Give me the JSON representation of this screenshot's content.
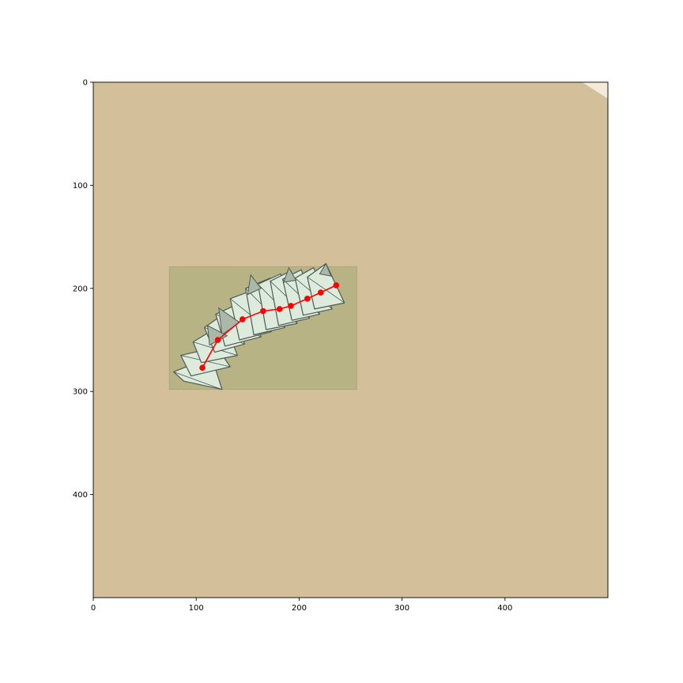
{
  "chart_data": {
    "type": "scatter",
    "title": "",
    "xlabel": "",
    "ylabel": "",
    "xlim": [
      0,
      500
    ],
    "ylim": [
      500,
      0
    ],
    "y_inverted": true,
    "grid": false,
    "legend": "none",
    "x_ticks": [
      0,
      100,
      200,
      300,
      400
    ],
    "y_ticks": [
      0,
      100,
      200,
      300,
      400
    ],
    "background_color": "#d4bf9b",
    "corner_color": "#f3ead9",
    "region": {
      "x0": 74,
      "y0": 179,
      "x1": 256,
      "y1": 298,
      "color": "#b7b385"
    },
    "folded_sheet": {
      "fill": "#dcebdc",
      "shade": "#a9b8a8",
      "stroke": "#4d5a52",
      "panels": [
        [
          [
            78,
            281
          ],
          [
            115,
            266
          ],
          [
            125,
            298
          ],
          [
            88,
            290
          ]
        ],
        [
          [
            85,
            265
          ],
          [
            120,
            257
          ],
          [
            133,
            276
          ],
          [
            95,
            285
          ]
        ],
        [
          [
            97,
            252
          ],
          [
            128,
            233
          ],
          [
            140,
            265
          ],
          [
            105,
            272
          ]
        ],
        [
          [
            108,
            238
          ],
          [
            135,
            219
          ],
          [
            147,
            254
          ],
          [
            118,
            262
          ]
        ],
        [
          [
            119,
            225
          ],
          [
            150,
            211
          ],
          [
            163,
            247
          ],
          [
            128,
            256
          ]
        ],
        [
          [
            133,
            210
          ],
          [
            160,
            200
          ],
          [
            173,
            242
          ],
          [
            142,
            250
          ]
        ],
        [
          [
            148,
            200
          ],
          [
            172,
            190
          ],
          [
            186,
            238
          ],
          [
            156,
            245
          ]
        ],
        [
          [
            160,
            196
          ],
          [
            182,
            186
          ],
          [
            198,
            234
          ],
          [
            168,
            240
          ]
        ],
        [
          [
            172,
            193
          ],
          [
            192,
            183
          ],
          [
            210,
            229
          ],
          [
            180,
            236
          ]
        ],
        [
          [
            184,
            191
          ],
          [
            202,
            182
          ],
          [
            220,
            225
          ],
          [
            193,
            231
          ]
        ],
        [
          [
            196,
            190
          ],
          [
            214,
            180
          ],
          [
            232,
            220
          ],
          [
            204,
            226
          ]
        ],
        [
          [
            208,
            189
          ],
          [
            226,
            176
          ],
          [
            244,
            214
          ],
          [
            215,
            220
          ]
        ]
      ],
      "spikes": [
        [
          [
            122,
            219
          ],
          [
            142,
            233
          ],
          [
            125,
            245
          ]
        ],
        [
          [
            111,
            236
          ],
          [
            130,
            246
          ],
          [
            113,
            255
          ]
        ],
        [
          [
            153,
            187
          ],
          [
            163,
            200
          ],
          [
            150,
            206
          ]
        ],
        [
          [
            190,
            180
          ],
          [
            197,
            192
          ],
          [
            185,
            194
          ]
        ],
        [
          [
            226,
            176
          ],
          [
            231,
            188
          ],
          [
            220,
            186
          ]
        ]
      ]
    },
    "path_color": "#ff0000",
    "points": [
      {
        "x": 106,
        "y": 277
      },
      {
        "x": 121,
        "y": 250
      },
      {
        "x": 145,
        "y": 230
      },
      {
        "x": 165,
        "y": 222
      },
      {
        "x": 181,
        "y": 220
      },
      {
        "x": 192,
        "y": 217
      },
      {
        "x": 208,
        "y": 210
      },
      {
        "x": 221,
        "y": 204
      },
      {
        "x": 236,
        "y": 197
      }
    ]
  }
}
